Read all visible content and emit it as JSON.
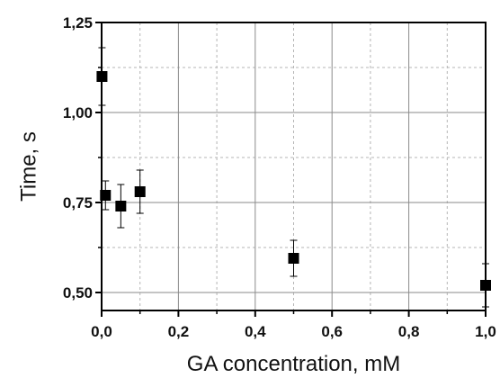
{
  "chart_data": {
    "type": "scatter",
    "title": "",
    "xlabel": "GA concentration, mM",
    "ylabel": "Time, s",
    "xlim": [
      0.0,
      1.0
    ],
    "ylim": [
      0.45,
      1.25
    ],
    "x_ticks": [
      0.0,
      0.2,
      0.4,
      0.6,
      0.8,
      1.0
    ],
    "x_tick_labels": [
      "0,0",
      "0,2",
      "0,4",
      "0,6",
      "0,8",
      "1,0"
    ],
    "y_ticks": [
      0.5,
      0.75,
      1.0,
      1.25
    ],
    "y_tick_labels": [
      "0,50",
      "0,75",
      "1,00",
      "1,25"
    ],
    "grid": {
      "major": "solid",
      "minor": "dotted"
    },
    "marker": "square",
    "marker_color": "#000000",
    "series": [
      {
        "points": [
          {
            "x": 0.001,
            "y": 1.1,
            "err": 0.08
          },
          {
            "x": 0.01,
            "y": 0.77,
            "err": 0.04
          },
          {
            "x": 0.05,
            "y": 0.74,
            "err": 0.06
          },
          {
            "x": 0.1,
            "y": 0.78,
            "err": 0.06
          },
          {
            "x": 0.5,
            "y": 0.595,
            "err": 0.05
          },
          {
            "x": 1.0,
            "y": 0.52,
            "err": 0.06
          }
        ]
      }
    ]
  }
}
